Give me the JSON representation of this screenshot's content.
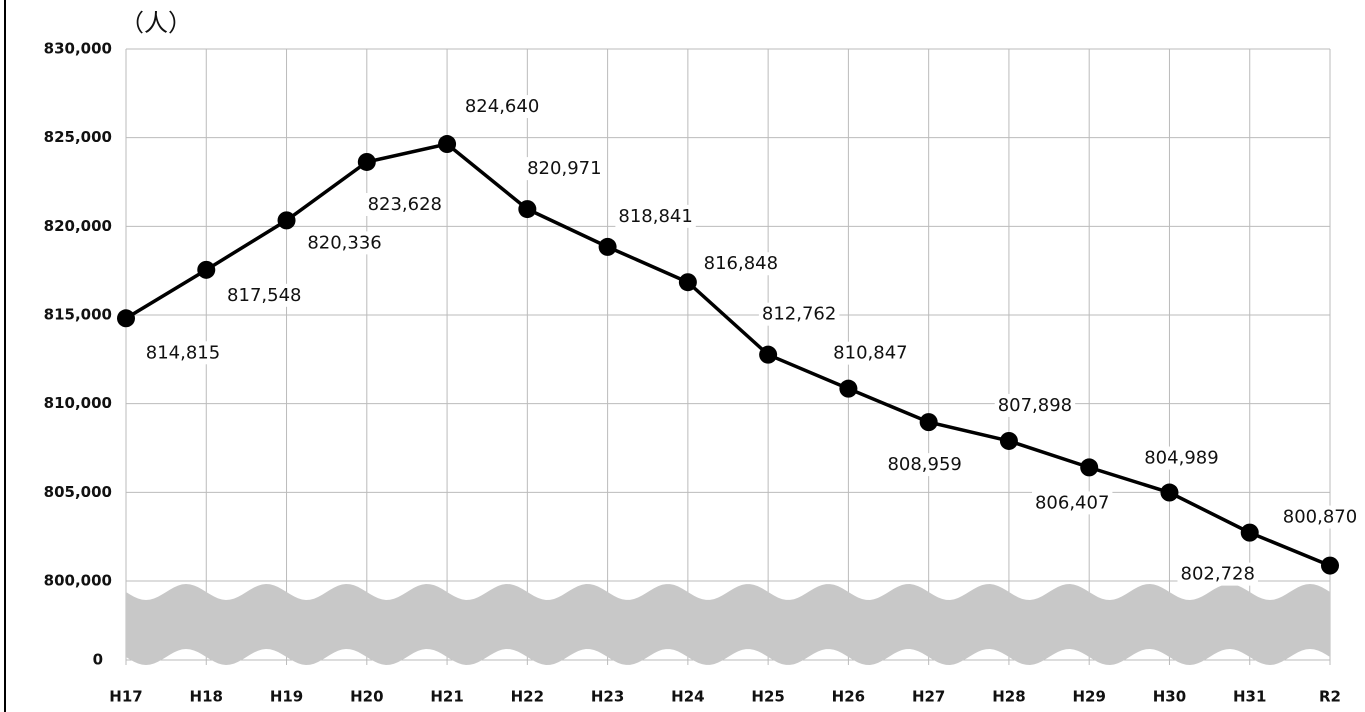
{
  "chart_data": {
    "type": "line",
    "y_label": "（人）",
    "categories": [
      "H17",
      "H18",
      "H19",
      "H20",
      "H21",
      "H22",
      "H23",
      "H24",
      "H25",
      "H26",
      "H27",
      "H28",
      "H29",
      "H30",
      "H31",
      "R2"
    ],
    "series": [
      {
        "color": "#000000",
        "values": [
          814815,
          817548,
          820336,
          823628,
          824640,
          820971,
          818841,
          816848,
          812762,
          810847,
          808959,
          807898,
          806407,
          804989,
          802728,
          800870
        ],
        "value_labels": [
          "814,815",
          "817,548",
          "820,336",
          "823,628",
          "824,640",
          "820,971",
          "818,841",
          "816,848",
          "812,762",
          "810,847",
          "808,959",
          "807,898",
          "806,407",
          "804,989",
          "802,728",
          "800,870"
        ]
      }
    ],
    "ylim": [
      0,
      830000
    ],
    "ybreak": [
      0,
      800000
    ],
    "yticks": [
      0,
      {
        "value": 800000,
        "label": "800,000"
      },
      {
        "value": 805000,
        "label": "805,000"
      },
      {
        "value": 810000,
        "label": "810,000"
      },
      {
        "value": 815000,
        "label": "815,000"
      },
      {
        "value": 820000,
        "label": "820,000"
      },
      {
        "value": 825000,
        "label": "825,000"
      },
      {
        "value": 830000,
        "label": "830,000"
      }
    ],
    "grid": true
  }
}
